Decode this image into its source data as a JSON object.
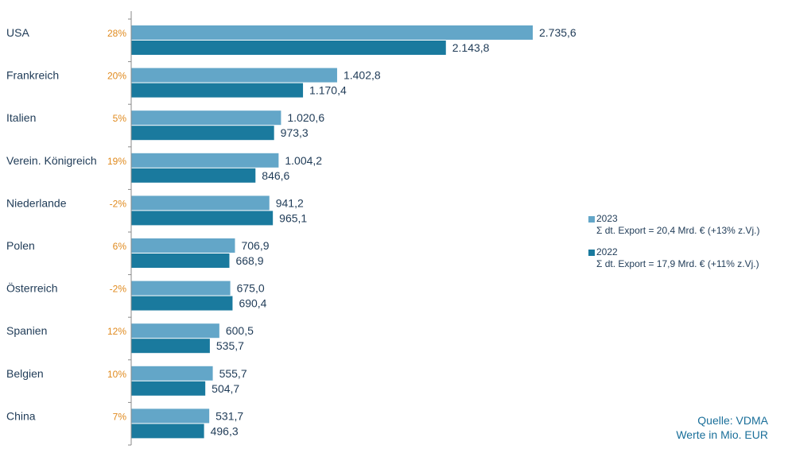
{
  "chart_data": {
    "type": "bar",
    "orientation": "horizontal",
    "categories": [
      "USA",
      "Frankreich",
      "Italien",
      "Verein. Königreich",
      "Niederlande",
      "Polen",
      "Österreich",
      "Spanien",
      "Belgien",
      "China"
    ],
    "change_labels": [
      "28%",
      "20%",
      "5%",
      "19%",
      "-2%",
      "6%",
      "-2%",
      "12%",
      "10%",
      "7%"
    ],
    "series": [
      {
        "name": "2023",
        "color": "#63a6c8",
        "values": [
          2735.6,
          1402.8,
          1020.6,
          1004.2,
          941.2,
          706.9,
          675.0,
          600.5,
          555.7,
          531.7
        ],
        "labels": [
          "2.735,6",
          "1.402,8",
          "1.020,6",
          "1.004,2",
          "941,2",
          "706,9",
          "675,0",
          "600,5",
          "555,7",
          "531,7"
        ]
      },
      {
        "name": "2022",
        "color": "#1a7a9e",
        "values": [
          2143.8,
          1170.4,
          973.3,
          846.6,
          965.1,
          668.9,
          690.4,
          535.7,
          504.7,
          496.3
        ],
        "labels": [
          "2.143,8",
          "1.170,4",
          "973,3",
          "846,6",
          "965,1",
          "668,9",
          "690,4",
          "535,7",
          "504,7",
          "496,3"
        ]
      }
    ],
    "xlim": [
      0,
      2735.6
    ],
    "unit": "Mio. EUR",
    "legend_position": "right"
  },
  "legend": {
    "items": [
      {
        "name": "2023",
        "sub": "Σ dt. Export = 20,4 Mrd. € (+13% z.Vj.)"
      },
      {
        "name": "2022",
        "sub": "Σ dt. Export = 17,9 Mrd. € (+11% z.Vj.)"
      }
    ]
  },
  "footer": {
    "source": "Quelle:  VDMA",
    "units": "Werte in Mio. EUR"
  }
}
